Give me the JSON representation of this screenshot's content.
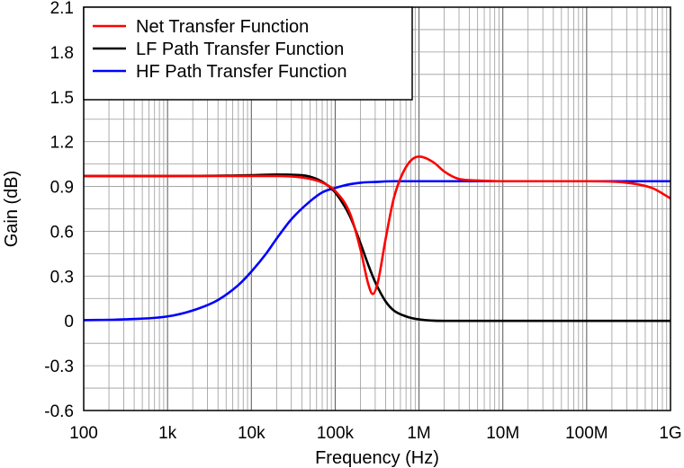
{
  "chart_data": {
    "type": "line",
    "title": "",
    "xlabel": "Frequency (Hz)",
    "ylabel": "Gain (dB)",
    "x_scale": "log",
    "xlim": [
      100,
      1000000000
    ],
    "ylim": [
      -0.6,
      2.1
    ],
    "grid": true,
    "legend_position": "top-left",
    "x_ticks": [
      {
        "value": 100,
        "label": "100"
      },
      {
        "value": 1000,
        "label": "1k"
      },
      {
        "value": 10000,
        "label": "10k"
      },
      {
        "value": 100000,
        "label": "100k"
      },
      {
        "value": 1000000,
        "label": "1M"
      },
      {
        "value": 10000000,
        "label": "10M"
      },
      {
        "value": 100000000,
        "label": "100M"
      },
      {
        "value": 1000000000,
        "label": "1G"
      }
    ],
    "y_ticks": [
      {
        "value": -0.6,
        "label": "-0.6"
      },
      {
        "value": -0.3,
        "label": "-0.3"
      },
      {
        "value": 0,
        "label": "0"
      },
      {
        "value": 0.3,
        "label": "0.3"
      },
      {
        "value": 0.6,
        "label": "0.6"
      },
      {
        "value": 0.9,
        "label": "0.9"
      },
      {
        "value": 1.2,
        "label": "1.2"
      },
      {
        "value": 1.5,
        "label": "1.5"
      },
      {
        "value": 1.8,
        "label": "1.8"
      },
      {
        "value": 2.1,
        "label": "2.1"
      }
    ],
    "series": [
      {
        "name": "Net Transfer Function",
        "color": "#ff0000",
        "x": [
          100,
          1000,
          10000,
          20000,
          40000,
          60000,
          80000,
          100000,
          150000,
          200000,
          250000,
          280000,
          320000,
          400000,
          500000,
          700000,
          1000000,
          1500000,
          2000000,
          3000000,
          5000000,
          10000000,
          100000000,
          300000000,
          600000000,
          1000000000
        ],
        "y": [
          0.97,
          0.97,
          0.97,
          0.97,
          0.96,
          0.94,
          0.91,
          0.87,
          0.72,
          0.48,
          0.24,
          0.18,
          0.25,
          0.55,
          0.82,
          1.03,
          1.1,
          1.06,
          1.0,
          0.95,
          0.94,
          0.935,
          0.935,
          0.925,
          0.89,
          0.82
        ]
      },
      {
        "name": "LF Path Transfer Function",
        "color": "#000000",
        "x": [
          100,
          1000,
          10000,
          20000,
          40000,
          60000,
          80000,
          100000,
          150000,
          200000,
          250000,
          300000,
          400000,
          500000,
          700000,
          1000000,
          2000000,
          10000000,
          100000000,
          1000000000
        ],
        "y": [
          0.97,
          0.97,
          0.975,
          0.98,
          0.975,
          0.95,
          0.91,
          0.86,
          0.7,
          0.52,
          0.37,
          0.26,
          0.13,
          0.07,
          0.03,
          0.01,
          0.0,
          0.0,
          0.0,
          0.0
        ]
      },
      {
        "name": "HF Path Transfer Function",
        "color": "#0000ff",
        "x": [
          100,
          300,
          1000,
          2000,
          4000,
          7000,
          10000,
          15000,
          20000,
          30000,
          50000,
          70000,
          100000,
          150000,
          200000,
          300000,
          500000,
          1000000,
          10000000,
          100000000,
          1000000000
        ],
        "y": [
          0.005,
          0.01,
          0.03,
          0.07,
          0.14,
          0.24,
          0.33,
          0.45,
          0.55,
          0.68,
          0.8,
          0.86,
          0.89,
          0.915,
          0.925,
          0.93,
          0.935,
          0.935,
          0.935,
          0.935,
          0.935
        ]
      }
    ]
  }
}
